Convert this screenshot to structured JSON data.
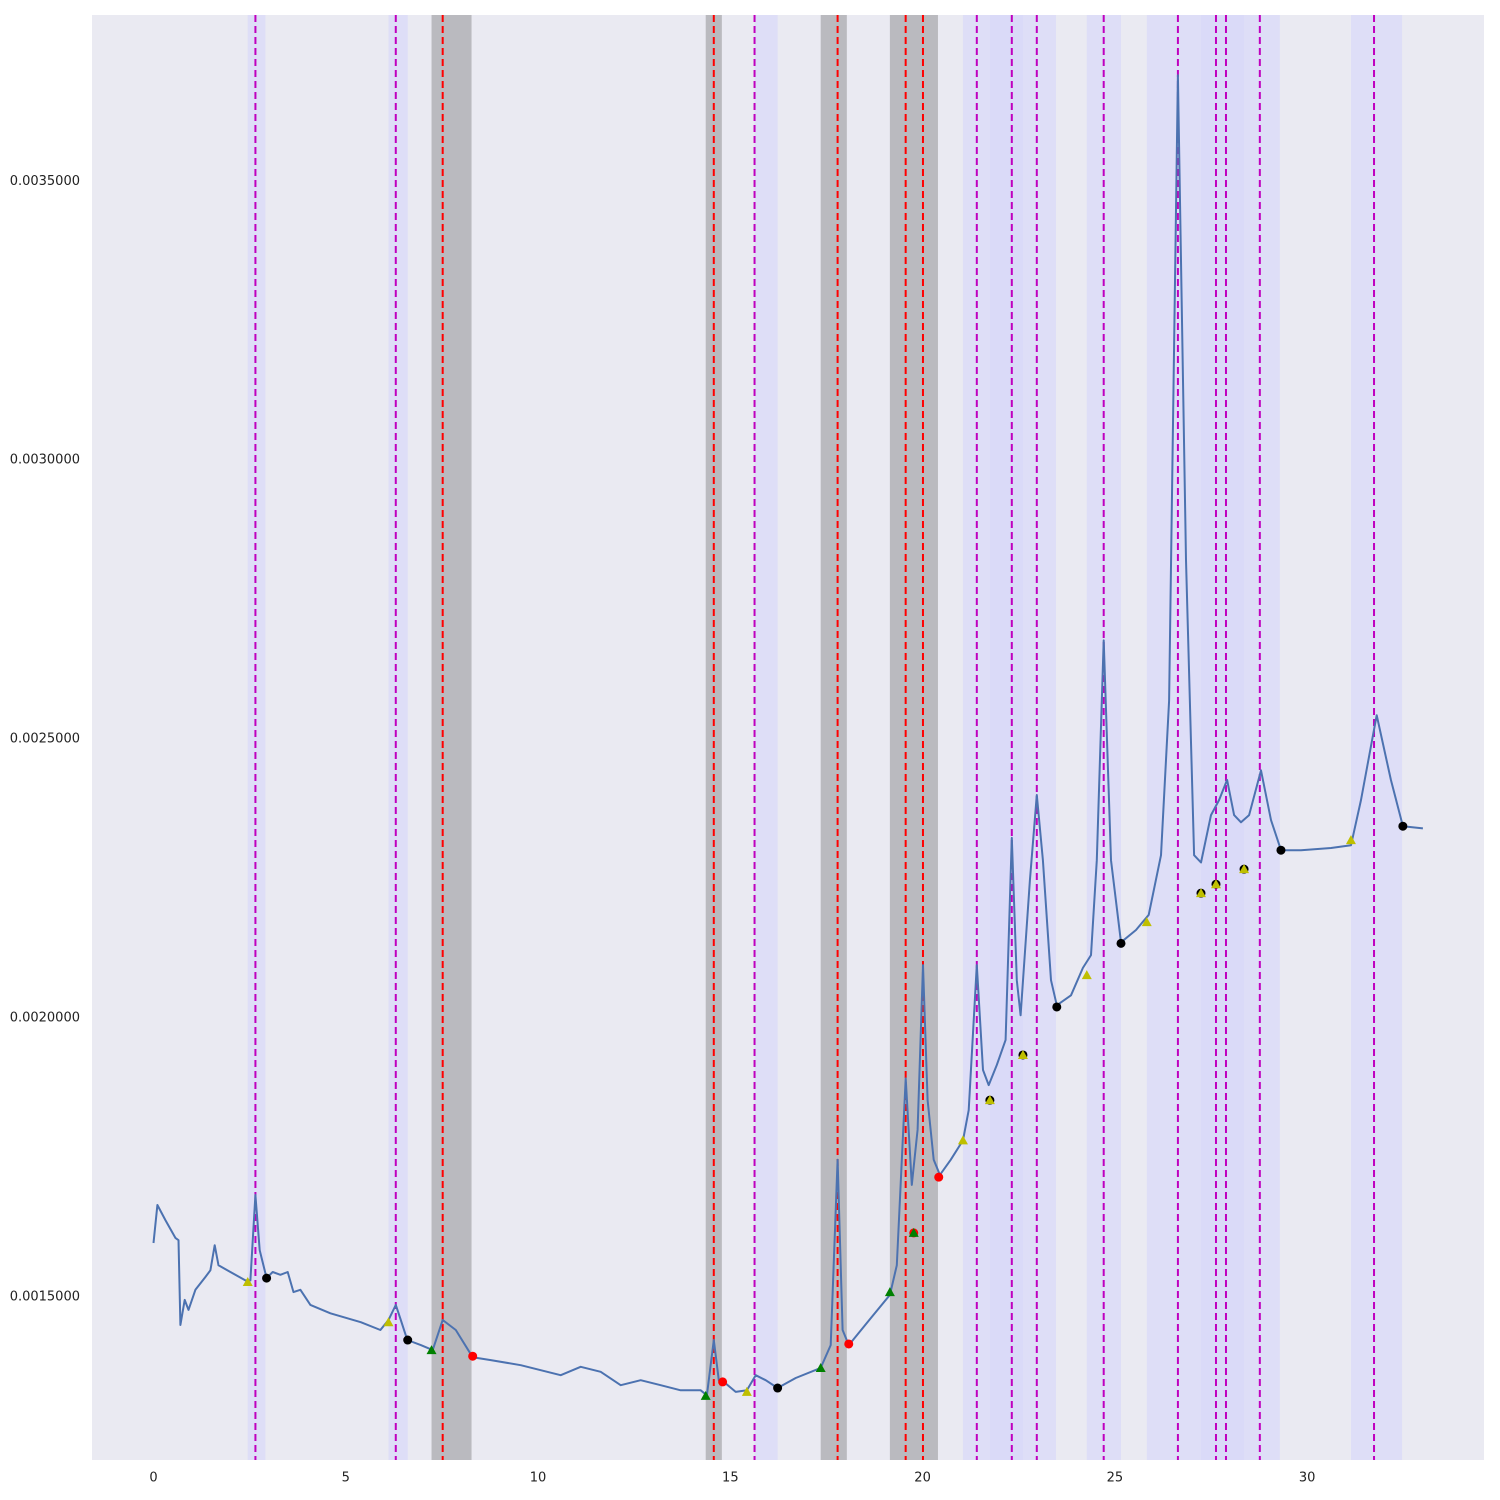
{
  "chart_data": {
    "type": "line",
    "xlim": [
      -1.6,
      34.6
    ],
    "ylim": [
      0.001208,
      0.003798
    ],
    "xticks": [
      0,
      5,
      10,
      15,
      20,
      25,
      30
    ],
    "yticks": [
      {
        "value": 0.0015,
        "label": "0.0015000"
      },
      {
        "value": 0.002,
        "label": "0.0020000"
      },
      {
        "value": 0.0025,
        "label": "0.0025000"
      },
      {
        "value": 0.003,
        "label": "0.0030000"
      },
      {
        "value": 0.0035,
        "label": "0.0035000"
      }
    ],
    "grid": false,
    "background": "#eaeaf2",
    "spans": [
      {
        "x": [
          2.45,
          2.91
        ],
        "color": "#ccccff",
        "alpha": 0.4
      },
      {
        "x": [
          6.11,
          6.61
        ],
        "color": "#ccccff",
        "alpha": 0.4
      },
      {
        "x": [
          15.63,
          16.23
        ],
        "color": "#ccccff",
        "alpha": 0.4
      },
      {
        "x": [
          21.05,
          23.47
        ],
        "color": "#ccccff",
        "alpha": 0.4
      },
      {
        "x": [
          21.75,
          22.61
        ],
        "color": "#ccccff",
        "alpha": 0.2
      },
      {
        "x": [
          24.27,
          25.16
        ],
        "color": "#ccccff",
        "alpha": 0.4
      },
      {
        "x": [
          25.83,
          29.29
        ],
        "color": "#ccccff",
        "alpha": 0.4
      },
      {
        "x": [
          27.24,
          28.36
        ],
        "color": "#ccccff",
        "alpha": 0.2
      },
      {
        "x": [
          31.14,
          32.47
        ],
        "color": "#ccccff",
        "alpha": 0.4
      },
      {
        "x": [
          7.23,
          8.27
        ],
        "color": "#808080",
        "alpha": 0.45
      },
      {
        "x": [
          14.36,
          14.78
        ],
        "color": "#808080",
        "alpha": 0.45
      },
      {
        "x": [
          17.35,
          18.03
        ],
        "color": "#808080",
        "alpha": 0.45
      },
      {
        "x": [
          19.15,
          20.4
        ],
        "color": "#808080",
        "alpha": 0.45
      }
    ],
    "vlines": [
      {
        "color": "#bf00bf",
        "x": [
          2.65,
          6.3,
          15.63,
          21.41,
          22.32,
          22.97,
          24.71,
          26.64,
          27.63,
          27.89,
          28.77,
          31.74
        ]
      },
      {
        "color": "#ff0000",
        "x": [
          7.52,
          14.57,
          17.79,
          19.56,
          20.01
        ]
      }
    ],
    "series": [
      {
        "color": "#4c72b0",
        "x": [
          0,
          0.1,
          0.31,
          0.57,
          0.65,
          0.7,
          0.81,
          0.91,
          1.09,
          1.35,
          1.48,
          1.59,
          1.69,
          2.0,
          2.39,
          2.52,
          2.65,
          2.76,
          2.94,
          3.1,
          3.3,
          3.49,
          3.64,
          3.82,
          4.08,
          4.6,
          5.39,
          5.9,
          6.11,
          6.3,
          6.43,
          6.6,
          6.95,
          7.26,
          7.52,
          7.86,
          8.3,
          8.77,
          9.55,
          10.59,
          11.11,
          11.63,
          12.15,
          12.67,
          13.19,
          13.71,
          14.23,
          14.39,
          14.57,
          14.7,
          14.83,
          15.14,
          15.43,
          15.66,
          15.92,
          16.23,
          16.7,
          17.35,
          17.61,
          17.79,
          17.92,
          18.08,
          18.65,
          19.15,
          19.33,
          19.56,
          19.72,
          19.87,
          20.01,
          20.13,
          20.29,
          20.45,
          20.73,
          21.05,
          21.2,
          21.41,
          21.57,
          21.72,
          21.93,
          22.16,
          22.32,
          22.45,
          22.55,
          22.79,
          22.97,
          23.13,
          23.34,
          23.49,
          23.86,
          24.17,
          24.38,
          24.53,
          24.71,
          24.9,
          25.16,
          25.55,
          25.88,
          26.2,
          26.41,
          26.64,
          26.85,
          27.06,
          27.24,
          27.5,
          27.71,
          27.92,
          28.1,
          28.28,
          28.49,
          28.8,
          29.06,
          29.32,
          29.84,
          30.62,
          31.14,
          31.4,
          31.81,
          32.18,
          32.49,
          33.01
        ],
        "values": [
          0.001597,
          0.001665,
          0.001638,
          0.001606,
          0.001602,
          0.00145,
          0.001495,
          0.001477,
          0.001513,
          0.001536,
          0.001548,
          0.001593,
          0.001557,
          0.001545,
          0.00153,
          0.00153,
          0.001683,
          0.001584,
          0.001534,
          0.001545,
          0.00154,
          0.001545,
          0.001509,
          0.001513,
          0.001486,
          0.001471,
          0.001455,
          0.001441,
          0.001459,
          0.001486,
          0.001459,
          0.001423,
          0.001414,
          0.001405,
          0.001459,
          0.001441,
          0.001392,
          0.001387,
          0.001378,
          0.00136,
          0.001375,
          0.001366,
          0.001342,
          0.001351,
          0.001342,
          0.001333,
          0.001333,
          0.001324,
          0.001423,
          0.001351,
          0.001348,
          0.00133,
          0.001333,
          0.00136,
          0.001351,
          0.001337,
          0.001355,
          0.001373,
          0.001414,
          0.001746,
          0.001441,
          0.001414,
          0.001462,
          0.001504,
          0.001557,
          0.001892,
          0.001701,
          0.0018,
          0.002095,
          0.001853,
          0.001746,
          0.001719,
          0.001746,
          0.001781,
          0.001835,
          0.002095,
          0.001907,
          0.00188,
          0.001916,
          0.001961,
          0.002323,
          0.002068,
          0.002005,
          0.002247,
          0.0024,
          0.002283,
          0.002068,
          0.002023,
          0.002041,
          0.00209,
          0.002113,
          0.002283,
          0.002677,
          0.002283,
          0.002136,
          0.002158,
          0.002185,
          0.002292,
          0.002569,
          0.00369,
          0.002821,
          0.002292,
          0.002279,
          0.002364,
          0.002391,
          0.002427,
          0.002364,
          0.002351,
          0.002364,
          0.002444,
          0.002355,
          0.002301,
          0.002301,
          0.002305,
          0.00231,
          0.002391,
          0.002543,
          0.002427,
          0.002344,
          0.00234
        ]
      }
    ],
    "markers": [
      {
        "shape": "circle",
        "color": "#000000",
        "x": [
          2.94,
          6.61,
          16.23,
          23.49,
          25.16,
          29.32,
          32.49,
          21.75,
          22.61,
          27.24,
          27.63,
          28.36
        ],
        "values": [
          0.001534,
          0.001423,
          0.001337,
          0.00202,
          0.002134,
          0.002301,
          0.002344,
          0.001853,
          0.001934,
          0.002224,
          0.00224,
          0.002267
        ]
      },
      {
        "shape": "circle",
        "color": "#ff0000",
        "x": [
          8.3,
          14.8,
          18.08,
          20.42,
          19.77
        ],
        "values": [
          0.001394,
          0.001348,
          0.001416,
          0.001715,
          0.001615
        ]
      },
      {
        "shape": "triangle",
        "color": "#bfbf00",
        "x": [
          2.45,
          6.11,
          15.43,
          21.05,
          24.27,
          25.83,
          31.14,
          21.75,
          22.61,
          27.24,
          27.63,
          28.36
        ],
        "values": [
          0.001527,
          0.001455,
          0.00133,
          0.001781,
          0.002077,
          0.002172,
          0.002319,
          0.001853,
          0.001934,
          0.002224,
          0.00224,
          0.002267
        ]
      },
      {
        "shape": "triangle",
        "color": "#008000",
        "x": [
          7.23,
          14.36,
          17.35,
          19.15,
          19.77
        ],
        "values": [
          0.001405,
          0.001323,
          0.001373,
          0.001509,
          0.001615
        ]
      }
    ]
  }
}
